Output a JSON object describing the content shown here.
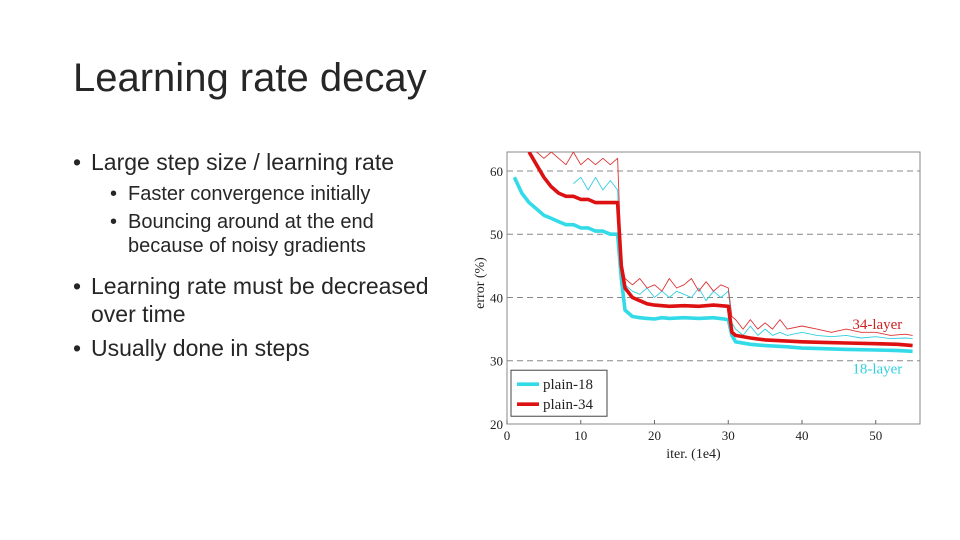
{
  "slide": {
    "title": "Learning rate decay",
    "bullets": [
      {
        "text": "Large step size / learning rate",
        "sub": [
          "Faster convergence initially",
          "Bouncing around at the end because of noisy gradients"
        ]
      },
      {
        "text": "Learning rate must be decreased over time",
        "sub": []
      },
      {
        "text": "Usually done in steps",
        "sub": []
      }
    ]
  },
  "chart_data": {
    "type": "line",
    "xlabel": "iter. (1e4)",
    "ylabel": "error (%)",
    "xlim": [
      0,
      56
    ],
    "ylim": [
      20,
      63
    ],
    "xticks": [
      0,
      10,
      20,
      30,
      40,
      50
    ],
    "yticks": [
      20,
      30,
      40,
      50,
      60
    ],
    "grid": "horizontal dashed",
    "legend_position": "bottom-left",
    "annotations": [
      {
        "text": "34-layer",
        "color": "#cc2222"
      },
      {
        "text": "18-layer",
        "color": "#33cfe0"
      }
    ],
    "series": [
      {
        "name": "plain-18",
        "color": "#33dbe8",
        "style": "thick",
        "x": [
          1,
          2,
          3,
          4,
          5,
          6,
          7,
          8,
          9,
          10,
          11,
          12,
          13,
          14,
          15,
          15.5,
          16,
          17,
          18,
          19,
          20,
          21,
          22,
          24,
          26,
          28,
          30,
          30.5,
          31,
          33,
          35,
          38,
          40,
          43,
          46,
          50,
          53,
          55
        ],
        "y": [
          59,
          56.5,
          55,
          54,
          53,
          52.5,
          52,
          51.5,
          51.5,
          51,
          51,
          50.5,
          50.5,
          50,
          50,
          43,
          38,
          37,
          36.8,
          36.7,
          36.6,
          36.8,
          36.7,
          36.8,
          36.7,
          36.8,
          36.5,
          34,
          33,
          32.6,
          32.4,
          32.2,
          32,
          31.9,
          31.8,
          31.7,
          31.6,
          31.5
        ]
      },
      {
        "name": "plain-34",
        "color": "#dd1111",
        "style": "thick",
        "x": [
          3,
          4,
          5,
          6,
          7,
          8,
          9,
          10,
          11,
          12,
          13,
          14,
          15,
          15.5,
          16,
          17,
          18,
          19,
          20,
          21,
          22,
          24,
          26,
          28,
          30,
          30.5,
          31,
          33,
          35,
          38,
          40,
          43,
          46,
          50,
          53,
          55
        ],
        "y": [
          63,
          61,
          59,
          57.5,
          56.5,
          56,
          56,
          55.5,
          55.5,
          55,
          55,
          55,
          55,
          45,
          41.5,
          40,
          39.5,
          39,
          38.8,
          38.7,
          38.6,
          38.7,
          38.6,
          38.8,
          38.6,
          34.5,
          34,
          33.6,
          33.3,
          33.1,
          33,
          32.9,
          32.8,
          32.7,
          32.6,
          32.4
        ]
      },
      {
        "name": "",
        "color": "#33cfe0",
        "style": "thin",
        "x": [
          9,
          10,
          11,
          12,
          13,
          14,
          15,
          15.5,
          16,
          17,
          18,
          19,
          20,
          21,
          22,
          23,
          24,
          25,
          26,
          27,
          28,
          29,
          30,
          30.5,
          31,
          32,
          33,
          34,
          35,
          36,
          37,
          38,
          40,
          42,
          44,
          46,
          48,
          50,
          52,
          54,
          55
        ],
        "y": [
          58,
          59,
          57,
          59,
          57,
          58.5,
          57,
          45,
          42,
          41,
          40.5,
          41.5,
          40,
          41,
          40,
          41,
          40.5,
          40,
          41.5,
          39.5,
          41,
          40,
          41,
          36,
          35,
          34,
          35.5,
          34,
          35,
          34,
          34.5,
          34,
          34.5,
          34,
          33.8,
          34,
          33.6,
          33.8,
          33.5,
          33.6,
          33.5
        ]
      },
      {
        "name": "",
        "color": "#dd3333",
        "style": "thin",
        "x": [
          3,
          5,
          6,
          7,
          8,
          9,
          10,
          11,
          12,
          13,
          14,
          15,
          15.5,
          16,
          17,
          18,
          19,
          20,
          21,
          22,
          23,
          24,
          25,
          26,
          27,
          28,
          29,
          30,
          30.5,
          31,
          32,
          33,
          34,
          35,
          36,
          37,
          38,
          40,
          42,
          44,
          46,
          48,
          50,
          52,
          54,
          55
        ],
        "y": [
          64,
          62,
          63,
          62,
          61,
          63,
          61,
          62,
          61,
          62,
          61,
          62,
          46,
          43,
          42,
          43,
          41.5,
          42,
          41,
          43,
          41.5,
          42,
          43,
          41,
          42.5,
          41,
          42,
          41.5,
          37,
          36.5,
          35,
          36.5,
          35,
          36,
          35,
          36.5,
          35,
          35.5,
          35,
          34.5,
          35,
          34.5,
          34.5,
          34,
          34.2,
          34
        ]
      }
    ]
  }
}
